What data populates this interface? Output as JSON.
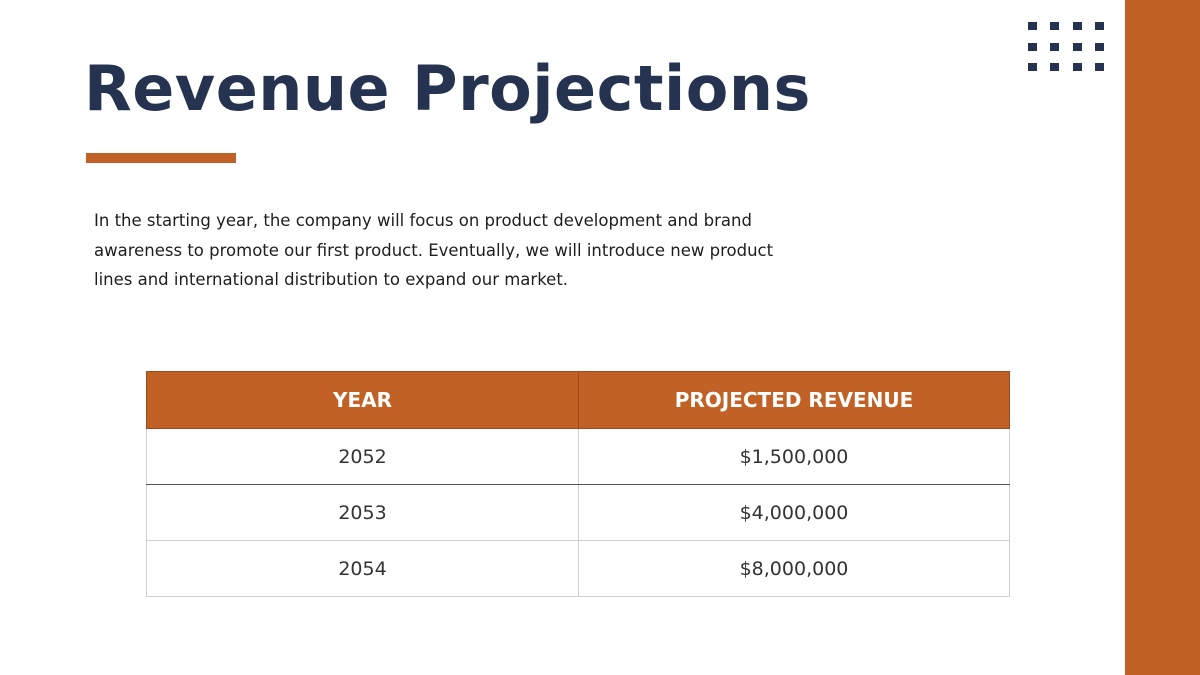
{
  "header": {
    "title": "Revenue Projections"
  },
  "body": {
    "paragraph": "In the starting year, the company will focus on product development and brand awareness to promote our first product. Eventually, we will introduce new product lines and international distribution to expand our market."
  },
  "table": {
    "columns": [
      "YEAR",
      "PROJECTED REVENUE"
    ],
    "rows": [
      [
        "2052",
        "$1,500,000"
      ],
      [
        "2053",
        "$4,000,000"
      ],
      [
        "2054",
        "$8,000,000"
      ]
    ]
  }
}
